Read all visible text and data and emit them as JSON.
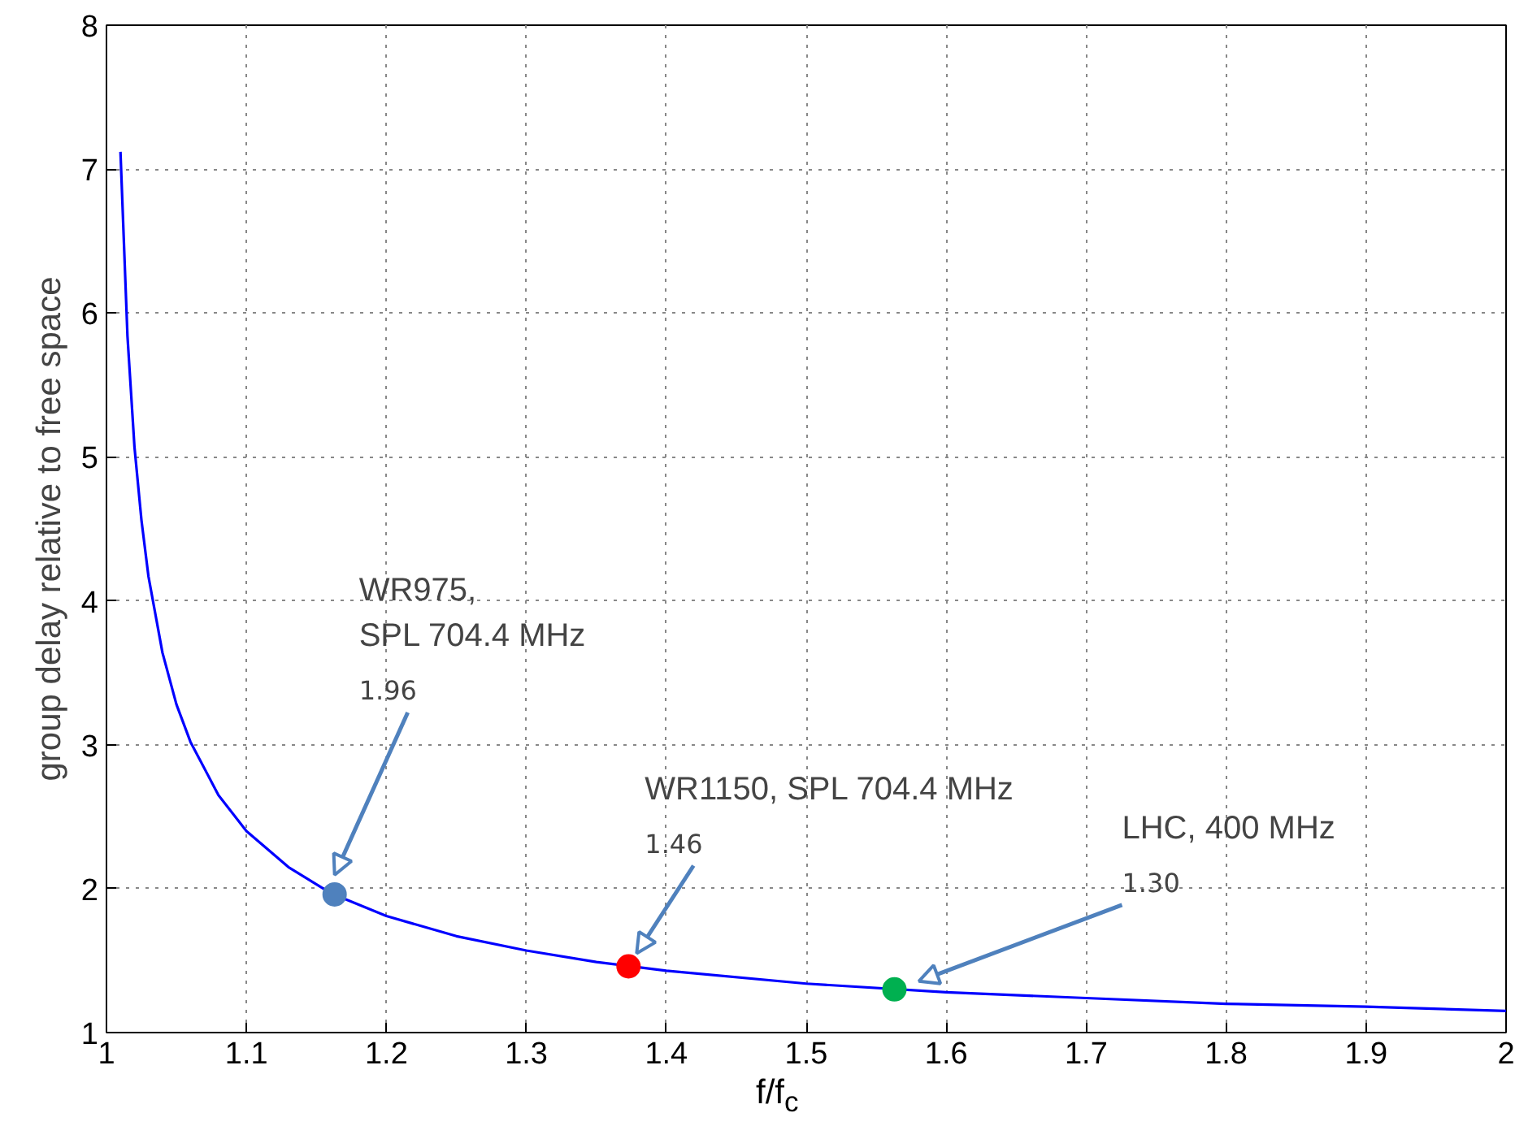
{
  "chart_data": {
    "type": "line",
    "xlabel": "f/f$_{c}$",
    "ylabel": "group delay relative to free space",
    "xlim": [
      1,
      2
    ],
    "ylim": [
      1,
      8
    ],
    "xticks": [
      1,
      1.1,
      1.2,
      1.3,
      1.4,
      1.5,
      1.6,
      1.7,
      1.8,
      1.9,
      2
    ],
    "yticks": [
      1,
      2,
      3,
      4,
      5,
      6,
      7,
      8
    ],
    "grid": true,
    "line_style": "solid",
    "marker": "none",
    "series": [
      {
        "color": "#0000ff",
        "x": [
          1.01,
          1.015,
          1.02,
          1.025,
          1.03,
          1.04,
          1.05,
          1.06,
          1.08,
          1.1,
          1.13,
          1.16,
          1.2,
          1.25,
          1.3,
          1.35,
          1.4,
          1.5,
          1.6,
          1.7,
          1.8,
          1.9,
          2.0
        ],
        "values": [
          7.12,
          5.84,
          5.07,
          4.56,
          4.17,
          3.64,
          3.28,
          3.02,
          2.65,
          2.4,
          2.15,
          1.97,
          1.81,
          1.67,
          1.57,
          1.49,
          1.43,
          1.34,
          1.28,
          1.24,
          1.2,
          1.18,
          1.15
        ]
      },
      {
        "type": "scatter",
        "marker": "circle",
        "colors": [
          "#4f81bd",
          "#ff0000",
          "#00b050"
        ],
        "x": [
          1.163,
          1.373,
          1.563
        ],
        "values": [
          1.96,
          1.46,
          1.3
        ],
        "value_labels": [
          "1.96",
          "1.46",
          "1.30"
        ]
      }
    ],
    "annotations": [
      "WR975,\nSPL 704.4 MHz",
      "WR1150, SPL 704.4 MHz",
      "LHC, 400 MHz"
    ]
  }
}
